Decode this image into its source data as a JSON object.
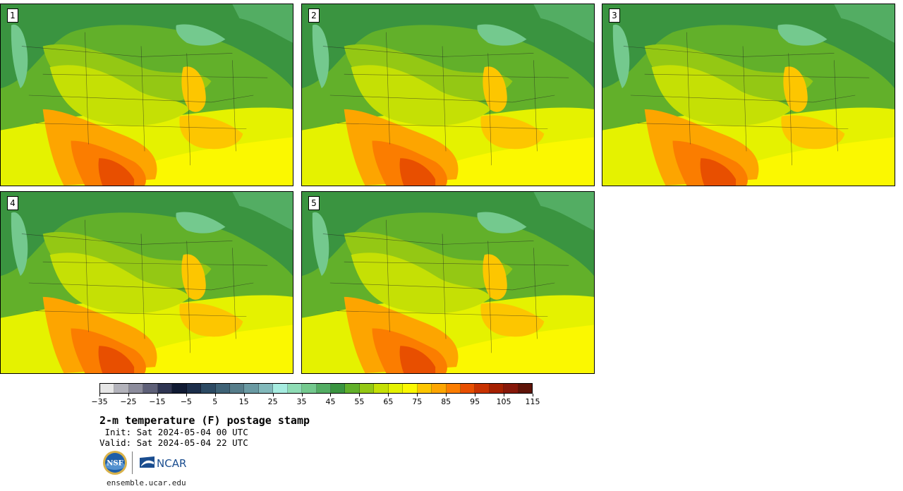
{
  "stamps": [
    {
      "label": "1"
    },
    {
      "label": "2"
    },
    {
      "label": "3"
    },
    {
      "label": "4"
    },
    {
      "label": "5"
    }
  ],
  "colorbar": {
    "colors": [
      "#e6e6e6",
      "#b3b3bb",
      "#8c8c9c",
      "#5e6078",
      "#2f3552",
      "#101a33",
      "#1c2e4a",
      "#2c4a63",
      "#3e6276",
      "#567d8a",
      "#6a9aa3",
      "#82b9bb",
      "#a6ece0",
      "#8edcb5",
      "#74c98e",
      "#53ad63",
      "#3a9440",
      "#62b02a",
      "#94c814",
      "#c5e005",
      "#e5f200",
      "#fbf800",
      "#fdc600",
      "#fda500",
      "#fb7d00",
      "#e84f00",
      "#c83200",
      "#a52000",
      "#86180a",
      "#5e1408"
    ],
    "tick_values": [
      "−35",
      "−25",
      "−15",
      "−5",
      "5",
      "15",
      "25",
      "35",
      "45",
      "55",
      "65",
      "75",
      "85",
      "95",
      "105",
      "115"
    ]
  },
  "title": "2-m temperature (F) postage stamp",
  "init_line": " Init: Sat 2024-05-04 00 UTC",
  "valid_line": "Valid: Sat 2024-05-04 22 UTC",
  "logos": {
    "nsf_text": "NSF",
    "ncar_text": "NCAR"
  },
  "website": "ensemble.ucar.edu"
}
